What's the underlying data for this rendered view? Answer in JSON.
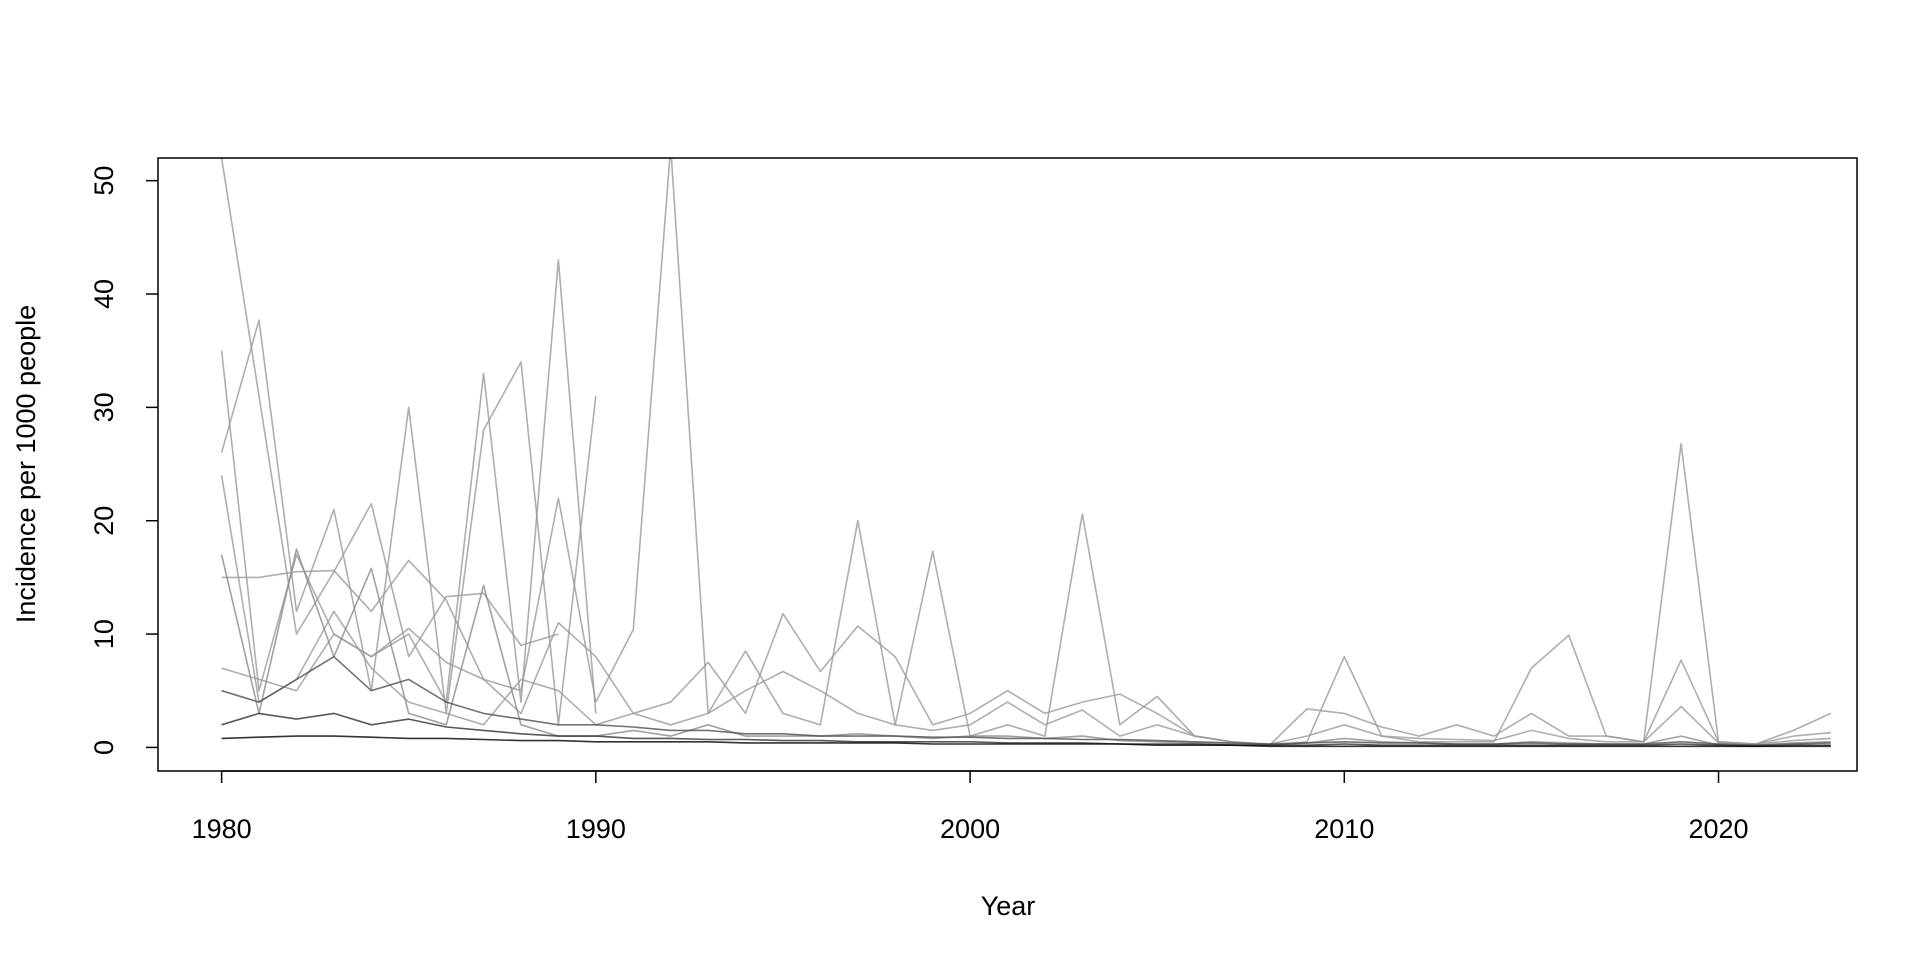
{
  "chart_data": {
    "type": "line",
    "x_label": "Year",
    "y_label": "Incidence per 1000 people",
    "x": [
      1980,
      1981,
      1982,
      1983,
      1984,
      1985,
      1986,
      1987,
      1988,
      1989,
      1990,
      1991,
      1992,
      1993,
      1994,
      1995,
      1996,
      1997,
      1998,
      1999,
      2000,
      2001,
      2002,
      2003,
      2004,
      2005,
      2006,
      2007,
      2008,
      2009,
      2010,
      2011,
      2012,
      2013,
      2014,
      2015,
      2016,
      2017,
      2018,
      2019,
      2020,
      2021,
      2022,
      2023
    ],
    "xlim": [
      1978.3,
      2023.7
    ],
    "xticks": [
      1980,
      1990,
      2000,
      2010,
      2020
    ],
    "ylim": [
      -2.08,
      52
    ],
    "yticks": [
      0,
      10,
      20,
      30,
      40,
      50
    ],
    "grid": false,
    "series": [
      {
        "color": "#9a9a9a",
        "values": [
          35,
          5,
          17,
          10,
          8,
          10,
          4,
          33,
          4,
          43,
          3,
          null,
          null,
          null,
          null,
          null,
          null,
          null,
          null,
          null,
          null,
          null,
          null,
          null,
          null,
          null,
          null,
          null,
          null,
          null,
          null,
          null,
          null,
          null,
          null,
          null,
          null,
          null,
          null,
          null,
          null,
          null,
          null,
          null
        ]
      },
      {
        "color": "#9a9a9a",
        "values": [
          26,
          37.7,
          12,
          21,
          5,
          30,
          3,
          28,
          34,
          2,
          31,
          null,
          null,
          null,
          null,
          null,
          null,
          null,
          null,
          null,
          null,
          null,
          null,
          null,
          null,
          null,
          null,
          null,
          null,
          null,
          null,
          null,
          null,
          null,
          null,
          null,
          null,
          null,
          null,
          null,
          null,
          null,
          null,
          null
        ]
      },
      {
        "color": "#9a9a9a",
        "values": [
          52,
          31,
          10,
          15.5,
          21.5,
          8,
          13.3,
          13.6,
          9,
          10,
          null,
          null,
          null,
          null,
          null,
          null,
          null,
          null,
          null,
          null,
          null,
          null,
          null,
          null,
          null,
          null,
          null,
          null,
          null,
          null,
          null,
          null,
          null,
          null,
          null,
          null,
          null,
          null,
          null,
          null,
          null,
          null,
          null,
          null
        ]
      },
      {
        "color": "#9a9a9a",
        "values": [
          15,
          15,
          15.5,
          15.6,
          12,
          16.5,
          13,
          6,
          5,
          22,
          4,
          10.4,
          53,
          3,
          8.5,
          3,
          2,
          20,
          2,
          17.3,
          1,
          2,
          1,
          20.6,
          2,
          4.5,
          1,
          0.5,
          0.2,
          0.5,
          8,
          1,
          0.5,
          0.5,
          0.5,
          7,
          9.9,
          1,
          0.5,
          26.8,
          0.5,
          0.3,
          1.5,
          3
        ]
      },
      {
        "color": "#9a9a9a",
        "values": [
          7,
          6,
          5,
          10,
          8,
          10.5,
          7.5,
          6,
          3,
          11,
          8,
          3,
          4,
          7.5,
          3,
          11.8,
          6.7,
          10.7,
          8,
          2,
          3,
          5,
          3,
          4,
          4.7,
          3,
          1,
          0.5,
          0.2,
          3.4,
          3,
          1.8,
          1,
          2,
          1,
          3,
          1,
          1,
          0.5,
          7.7,
          0.5,
          0.3,
          1,
          1.3
        ]
      },
      {
        "color": "#9a9a9a",
        "values": [
          24,
          4,
          6,
          12,
          7,
          4,
          3,
          2,
          6,
          5,
          2,
          3,
          2,
          3,
          5,
          6.7,
          5,
          3,
          2,
          1.5,
          2,
          4,
          2,
          3.3,
          1,
          2,
          1,
          0.5,
          0.3,
          1,
          2,
          1,
          0.8,
          0.7,
          0.6,
          1.5,
          0.8,
          0.5,
          0.5,
          3.6,
          0.4,
          0.3,
          0.6,
          0.8
        ]
      },
      {
        "color": "#8a8a8a",
        "values": [
          17,
          3,
          17.5,
          8,
          15.8,
          3,
          2,
          14.3,
          2,
          1,
          1,
          1.5,
          1,
          2,
          1,
          1,
          1,
          1.2,
          1,
          0.8,
          1,
          1,
          0.8,
          1,
          0.6,
          0.5,
          0.4,
          0.3,
          0.2,
          0.4,
          0.8,
          0.5,
          0.4,
          0.3,
          0.3,
          0.5,
          0.4,
          0.3,
          0.3,
          1,
          0.2,
          0.2,
          0.4,
          0.5
        ]
      },
      {
        "color": "#505050",
        "values": [
          5,
          4,
          6,
          8,
          5,
          6,
          4,
          3,
          2.5,
          2,
          2,
          1.8,
          1.5,
          1.5,
          1.2,
          1.2,
          1,
          1,
          1,
          0.9,
          0.9,
          0.8,
          0.8,
          0.7,
          0.7,
          0.6,
          0.5,
          0.4,
          0.3,
          0.4,
          0.5,
          0.4,
          0.4,
          0.3,
          0.3,
          0.4,
          0.3,
          0.3,
          0.3,
          0.5,
          0.3,
          0.2,
          0.3,
          0.4
        ]
      },
      {
        "color": "#303030",
        "values": [
          2,
          3,
          2.5,
          3,
          2,
          2.5,
          1.8,
          1.5,
          1.2,
          1,
          1,
          0.8,
          0.8,
          0.7,
          0.7,
          0.6,
          0.6,
          0.5,
          0.5,
          0.5,
          0.5,
          0.4,
          0.4,
          0.4,
          0.3,
          0.3,
          0.3,
          0.2,
          0.2,
          0.2,
          0.3,
          0.2,
          0.2,
          0.2,
          0.2,
          0.2,
          0.2,
          0.2,
          0.2,
          0.3,
          0.2,
          0.1,
          0.2,
          0.2
        ]
      },
      {
        "color": "#000000",
        "values": [
          0.8,
          0.9,
          1,
          1,
          0.9,
          0.8,
          0.8,
          0.7,
          0.6,
          0.6,
          0.5,
          0.5,
          0.5,
          0.5,
          0.4,
          0.4,
          0.4,
          0.4,
          0.4,
          0.3,
          0.3,
          0.3,
          0.3,
          0.3,
          0.3,
          0.2,
          0.2,
          0.2,
          0.1,
          0.1,
          0.1,
          0.1,
          0.1,
          0.1,
          0.1,
          0.1,
          0.1,
          0.1,
          0.1,
          0.1,
          0.1,
          0.1,
          0.1,
          0.1
        ]
      }
    ]
  }
}
